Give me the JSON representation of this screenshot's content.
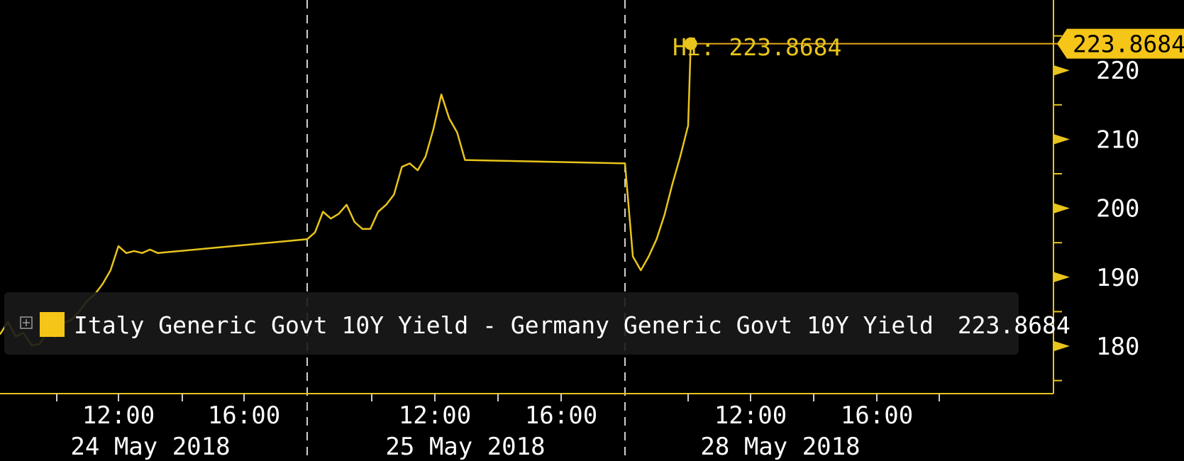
{
  "chart_data": {
    "type": "line",
    "title": "",
    "xlabel": "",
    "ylabel": "",
    "ylim": [
      175,
      225
    ],
    "y_ticks": [
      "220",
      "210",
      "200",
      "190",
      "180"
    ],
    "x_time_labels": [
      "12:00",
      "16:00",
      "12:00",
      "16:00",
      "12:00",
      "16:00"
    ],
    "x_date_labels": [
      "24 May 2018",
      "25 May 2018",
      "28 May 2018"
    ],
    "grid": false,
    "legend_position": "bottom-left",
    "colors": {
      "series": "#e8c41c",
      "background": "#000000",
      "axis": "#e8c41c",
      "tag": "#f5c518"
    },
    "high": {
      "label": "Hi: 223.8684",
      "value": 223.8684
    },
    "last_value_tag": "223.8684",
    "series": [
      {
        "name": "Italy Generic Govt 10Y Yield - Germany Generic Govt 10Y Yield",
        "last_value": "223.8684",
        "x": [
          "24 May 08:00",
          "24 May 08:30",
          "24 May 09:00",
          "24 May 09:30",
          "24 May 10:00",
          "24 May 10:30",
          "24 May 11:00",
          "24 May 11:30",
          "24 May 12:00",
          "24 May 12:30",
          "24 May 13:00",
          "24 May 13:30",
          "24 May 14:00",
          "24 May 14:30",
          "24 May 15:00",
          "24 May 15:30",
          "24 May 16:00",
          "24 May 16:30",
          "24 May 17:00",
          "24 May 17:30",
          "24 May 18:00",
          "25 May 08:00",
          "25 May 08:30",
          "25 May 09:00",
          "25 May 09:30",
          "25 May 10:00",
          "25 May 10:30",
          "25 May 11:00",
          "25 May 11:30",
          "25 May 12:00",
          "25 May 12:30",
          "25 May 13:00",
          "25 May 13:30",
          "25 May 14:00",
          "25 May 14:30",
          "25 May 15:00",
          "25 May 15:30",
          "25 May 16:00",
          "25 May 16:30",
          "25 May 17:00",
          "25 May 17:30",
          "25 May 18:00",
          "28 May 08:00",
          "28 May 08:30",
          "28 May 09:00",
          "28 May 09:30",
          "28 May 10:00",
          "28 May 10:30",
          "28 May 11:00",
          "28 May 11:30",
          "28 May 12:00",
          "28 May 12:10"
        ],
        "values": [
          181.7,
          183.5,
          181.4,
          181.9,
          180.1,
          180.3,
          182.0,
          181.3,
          183.3,
          183.8,
          185.0,
          186.5,
          187.5,
          189.0,
          191.0,
          194.5,
          193.5,
          193.8,
          193.5,
          194.0,
          193.5,
          195.5,
          196.5,
          199.5,
          198.5,
          199.2,
          200.5,
          198.0,
          197.0,
          197.0,
          199.5,
          200.5,
          202.0,
          206.0,
          206.5,
          205.5,
          207.5,
          211.5,
          216.5,
          213.0,
          211.0,
          207.0,
          206.5,
          193.0,
          191.0,
          193.0,
          195.5,
          199.0,
          203.5,
          207.5,
          212.0,
          223.8684
        ]
      }
    ]
  }
}
